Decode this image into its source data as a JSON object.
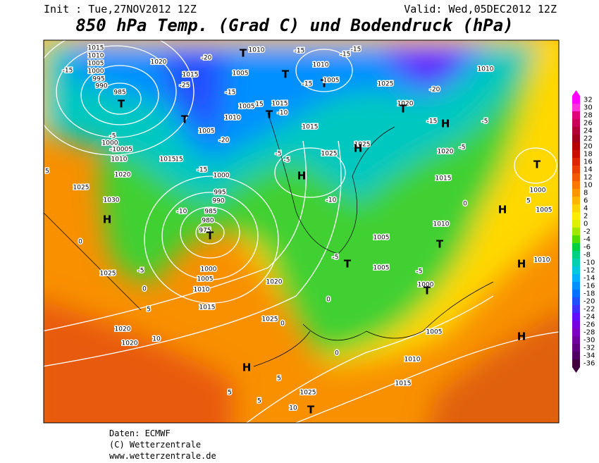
{
  "header": {
    "init": "Init : Tue,27NOV2012 12Z",
    "valid": "Valid: Wed,05DEC2012 12Z",
    "title": "850 hPa Temp. (Grad C) und Bodendruck (hPa)"
  },
  "scale": {
    "labels": [
      32,
      30,
      28,
      26,
      24,
      22,
      20,
      18,
      16,
      14,
      12,
      10,
      8,
      6,
      4,
      2,
      0,
      -2,
      -4,
      -6,
      -8,
      -10,
      -12,
      -14,
      -16,
      -18,
      -20,
      -22,
      -24,
      -26,
      -28,
      -30,
      -32,
      -34,
      -36
    ],
    "colors": [
      "#ff00ff",
      "#ff33dd",
      "#e0007a",
      "#c8005a",
      "#b0003a",
      "#a00020",
      "#b40000",
      "#c81000",
      "#dc2800",
      "#e84000",
      "#f05a00",
      "#f87800",
      "#fc9600",
      "#ffb400",
      "#ffd200",
      "#ffec00",
      "#dcf000",
      "#a0e600",
      "#50dc00",
      "#00d040",
      "#00d080",
      "#00d0b0",
      "#00c8e0",
      "#00b0ff",
      "#0090ff",
      "#0070ff",
      "#2050ff",
      "#4030ff",
      "#6010ff",
      "#7800e0",
      "#8000c0",
      "#7000a0",
      "#600080",
      "#500060",
      "#400040"
    ]
  },
  "map": {
    "labels": [
      "1015",
      "1010",
      "1005",
      "1000",
      "995",
      "990",
      "985",
      "T",
      "-15",
      "1020",
      "-20",
      "1015",
      "-25",
      "T",
      "1010",
      "-15",
      "-15",
      "-15",
      "1010",
      "1005",
      "-15",
      "1005",
      "15",
      "1010",
      "T",
      "1005",
      "-20",
      "1015",
      "-10",
      "T",
      "1015",
      "T",
      "-15",
      "T",
      "1005",
      "1025",
      "1020",
      "T",
      "-15",
      "H",
      "-20",
      "1010",
      "-5",
      "1020",
      "-5",
      "15",
      "1015",
      "-15",
      "1000",
      "-5",
      "-5",
      "H",
      "1025",
      "1025",
      "H",
      "1015",
      "1000",
      "1005",
      "T",
      "H",
      "5",
      "-5",
      "1000",
      "-10005",
      "1010",
      "1020",
      "1025",
      "5",
      "1030",
      "H",
      "0",
      "1025",
      "-5",
      "0",
      "5",
      "1020",
      "1020",
      "10",
      "-10",
      "995",
      "990",
      "985",
      "980",
      "975",
      "T",
      "1000",
      "1005",
      "1010",
      "1015",
      "1020",
      "1025",
      "0",
      "0",
      "-5",
      "T",
      "1005",
      "1005",
      "-5",
      "1000",
      "T",
      "T",
      "1010",
      "0",
      "1010",
      "H",
      "H",
      "1005",
      "1010",
      "1015",
      "1025",
      "5",
      "5",
      "5",
      "10",
      "T",
      "H",
      "0",
      "-10"
    ]
  },
  "footer": {
    "source": "Daten: ECMWF",
    "copyright": "(C) Wetterzentrale",
    "url": "www.wetterzentrale.de"
  }
}
